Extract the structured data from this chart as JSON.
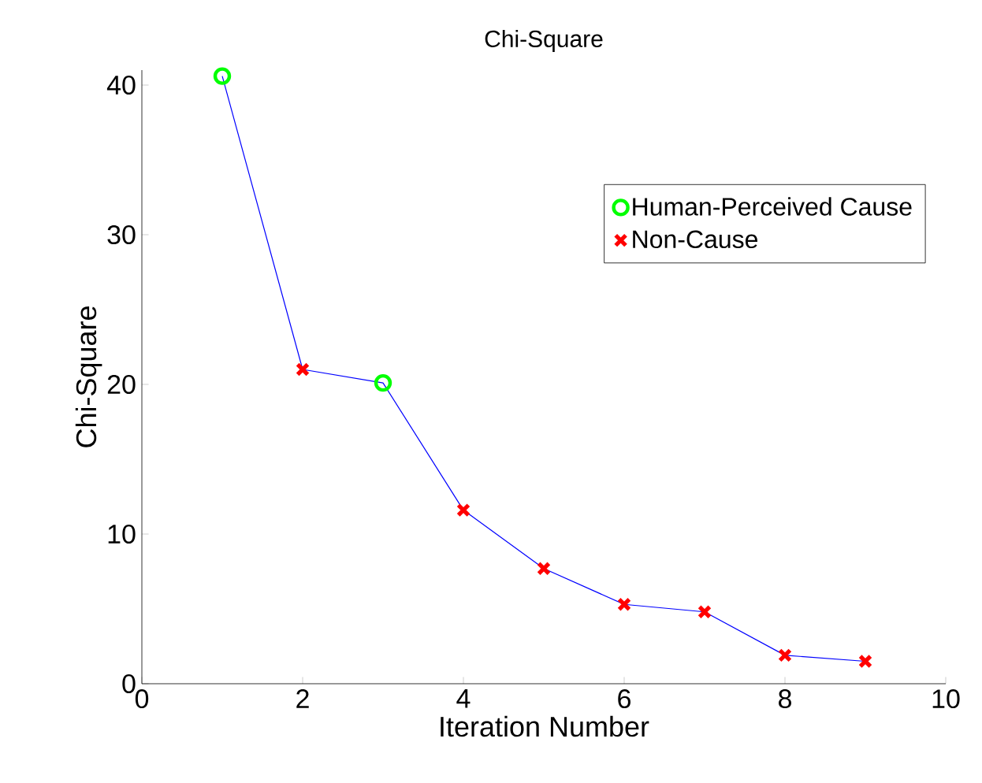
{
  "chart_data": {
    "type": "line",
    "title": "Chi-Square",
    "xlabel": "Iteration Number",
    "ylabel": "Chi-Square",
    "xlim": [
      0,
      10
    ],
    "xticks": [
      0,
      2,
      4,
      6,
      8,
      10
    ],
    "ylim": [
      0,
      41
    ],
    "yticks": [
      0,
      10,
      20,
      30,
      40
    ],
    "legend": "top right",
    "grid": false,
    "series": [
      {
        "color": "#0000ff",
        "marker": "none",
        "x": [
          1,
          2,
          3,
          4,
          5,
          6,
          7,
          8,
          9
        ],
        "values": [
          40.6,
          21.0,
          20.1,
          11.6,
          7.7,
          5.3,
          4.8,
          1.9,
          1.5
        ]
      },
      {
        "type": "scatter",
        "name": "Human-Perceived Cause",
        "color": "#00ff00",
        "marker": "circle",
        "x": [
          1,
          3
        ],
        "values": [
          40.6,
          20.1
        ]
      },
      {
        "type": "scatter",
        "name": "Non-Cause",
        "color": "#ff0000",
        "marker": "cross",
        "x": [
          2,
          4,
          5,
          6,
          7,
          8,
          9
        ],
        "values": [
          21.0,
          11.6,
          7.7,
          5.3,
          4.8,
          1.9,
          1.5
        ]
      }
    ]
  }
}
